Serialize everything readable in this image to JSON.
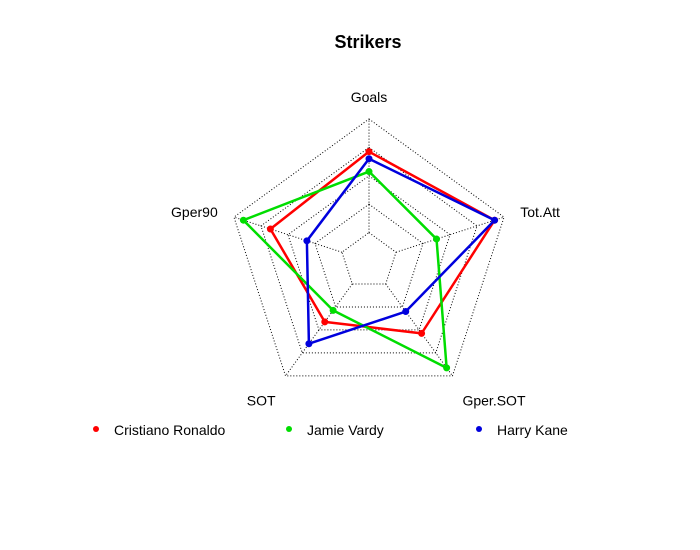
{
  "chart_data": {
    "type": "radar",
    "title": "Strikers",
    "axes": [
      "Goals",
      "Tot.Att",
      "Gper.SOT",
      "SOT",
      "Gper90"
    ],
    "range": [
      0,
      1
    ],
    "grid_levels": 5,
    "grid_style": "dotted",
    "legend_position": "bottom",
    "series": [
      {
        "name": "Cristiano Ronaldo",
        "color": "#ff0000",
        "values": [
          0.77,
          0.93,
          0.63,
          0.53,
          0.73
        ]
      },
      {
        "name": "Jamie Vardy",
        "color": "#00dd00",
        "values": [
          0.63,
          0.5,
          0.93,
          0.43,
          0.93
        ]
      },
      {
        "name": "Harry Kane",
        "color": "#0000dd",
        "values": [
          0.72,
          0.93,
          0.44,
          0.72,
          0.46
        ]
      }
    ]
  }
}
